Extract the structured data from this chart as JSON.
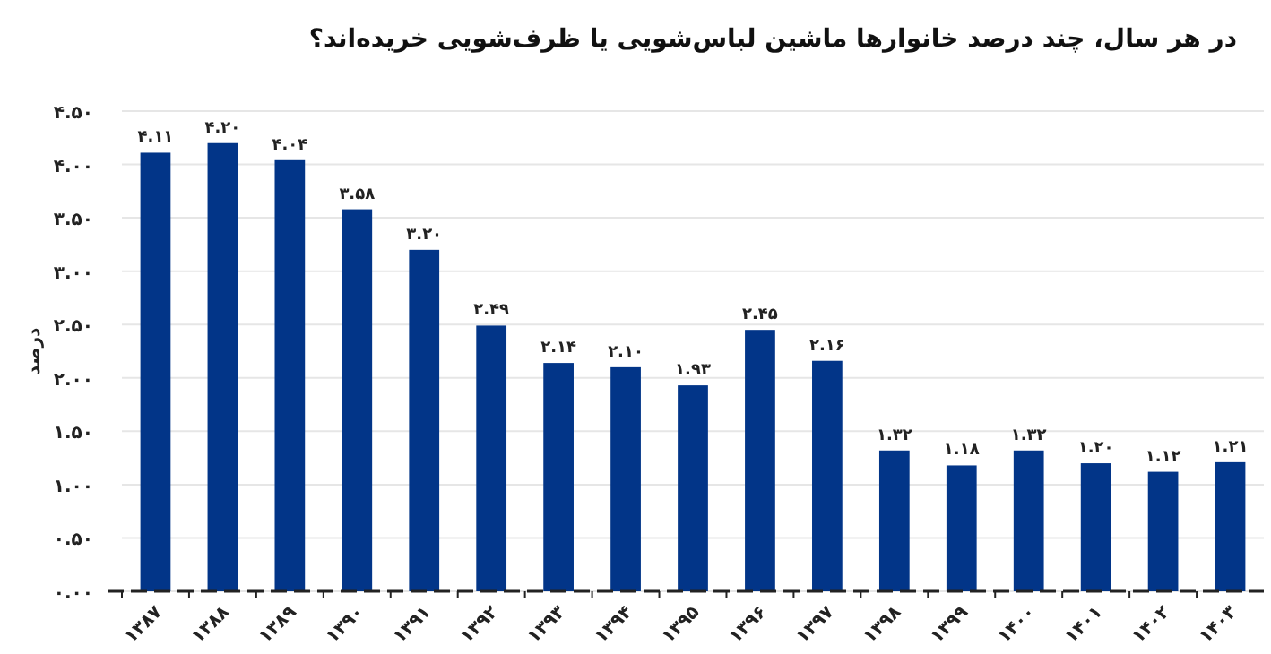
{
  "chart_data": {
    "type": "bar",
    "title": "در هر سال، چند درصد خانوارها ماشین لباس‌شویی یا ظرف‌شویی خریده‌اند؟",
    "ylabel": "درصد",
    "categories": [
      "۱۳۸۷",
      "۱۳۸۸",
      "۱۳۸۹",
      "۱۳۹۰",
      "۱۳۹۱",
      "۱۳۹۲",
      "۱۳۹۳",
      "۱۳۹۴",
      "۱۳۹۵",
      "۱۳۹۶",
      "۱۳۹۷",
      "۱۳۹۸",
      "۱۳۹۹",
      "۱۴۰۰",
      "۱۴۰۱",
      "۱۴۰۲",
      "۱۴۰۳"
    ],
    "values": [
      4.11,
      4.2,
      4.04,
      3.58,
      3.2,
      2.49,
      2.14,
      2.1,
      1.93,
      2.45,
      2.16,
      1.32,
      1.18,
      1.32,
      1.2,
      1.12,
      1.21
    ],
    "value_labels": [
      "۴.۱۱",
      "۴.۲۰",
      "۴.۰۴",
      "۳.۵۸",
      "۳.۲۰",
      "۲.۴۹",
      "۲.۱۴",
      "۲.۱۰",
      "۱.۹۳",
      "۲.۴۵",
      "۲.۱۶",
      "۱.۳۲",
      "۱.۱۸",
      "۱.۳۲",
      "۱.۲۰",
      "۱.۱۲",
      "۱.۲۱"
    ],
    "color": "#023588",
    "ylim": [
      0,
      4.5
    ],
    "yticks": [
      {
        "value": 0,
        "label": "۰.۰۰"
      },
      {
        "value": 0.5,
        "label": "۰.۵۰"
      },
      {
        "value": 1,
        "label": "۱.۰۰"
      },
      {
        "value": 1.5,
        "label": "۱.۵۰"
      },
      {
        "value": 2,
        "label": "۲.۰۰"
      },
      {
        "value": 2.5,
        "label": "۲.۵۰"
      },
      {
        "value": 3,
        "label": "۳.۰۰"
      },
      {
        "value": 3.5,
        "label": "۳.۵۰"
      },
      {
        "value": 4,
        "label": "۴.۰۰"
      },
      {
        "value": 4.5,
        "label": "۴.۵۰"
      }
    ],
    "grid": "y"
  }
}
